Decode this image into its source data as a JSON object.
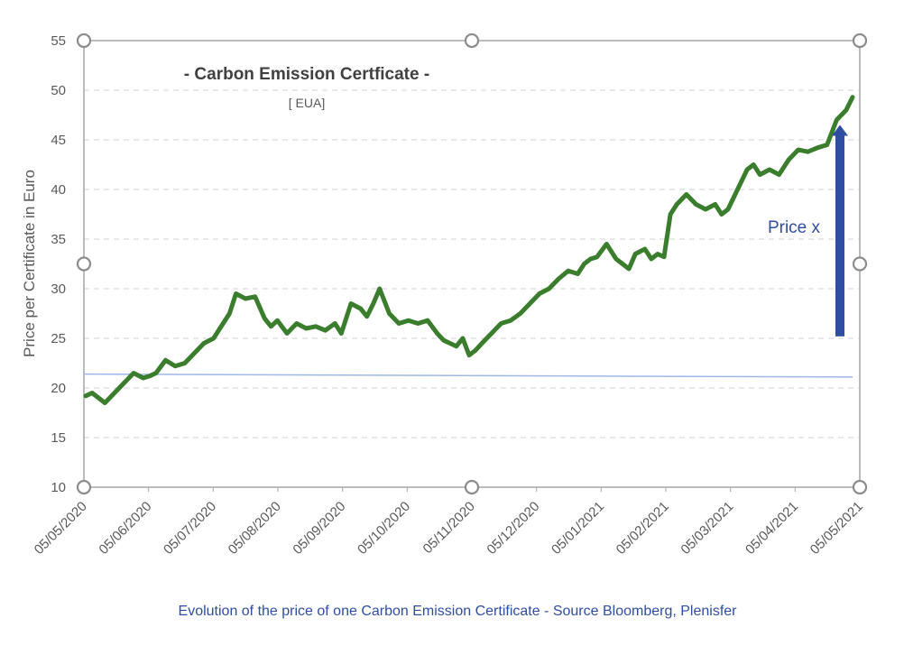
{
  "chart_data": {
    "type": "line",
    "title": "- Carbon Emission Certficate -",
    "subtitle": "[ EUA]",
    "ylabel": "Price per Certificate in Euro",
    "xlabel": "",
    "ylim": [
      10,
      55
    ],
    "yticks": [
      10,
      15,
      20,
      25,
      30,
      35,
      40,
      45,
      50,
      55
    ],
    "xticks": [
      "05/05/2020",
      "05/06/2020",
      "05/07/2020",
      "05/08/2020",
      "05/09/2020",
      "05/10/2020",
      "05/11/2020",
      "05/12/2020",
      "05/01/2021",
      "05/02/2021",
      "05/03/2021",
      "05/04/2021",
      "05/05/2021"
    ],
    "grid": true,
    "legend": "none",
    "series": [
      {
        "color": "#3a7d2c",
        "x": [
          0,
          0.1,
          0.2,
          0.3,
          0.45,
          0.6,
          0.75,
          0.9,
          1.0,
          1.1,
          1.25,
          1.4,
          1.55,
          1.7,
          1.85,
          2.0,
          2.15,
          2.25,
          2.35,
          2.5,
          2.65,
          2.8,
          2.9,
          3.0,
          3.15,
          3.3,
          3.45,
          3.6,
          3.75,
          3.9,
          4.0,
          4.15,
          4.3,
          4.4,
          4.5,
          4.6,
          4.75,
          4.9,
          5.05,
          5.2,
          5.35,
          5.5,
          5.6,
          5.7,
          5.8,
          5.9,
          6.0,
          6.1,
          6.2,
          6.35,
          6.5,
          6.65,
          6.8,
          6.95,
          7.1,
          7.25,
          7.4,
          7.55,
          7.7,
          7.8,
          7.9,
          8.0,
          8.15,
          8.3,
          8.4,
          8.5,
          8.6,
          8.75,
          8.85,
          8.95,
          9.05,
          9.15,
          9.25,
          9.4,
          9.55,
          9.7,
          9.85,
          9.95,
          10.05,
          10.2,
          10.35,
          10.45,
          10.55,
          10.7,
          10.85,
          11.0,
          11.15,
          11.3,
          11.45,
          11.6,
          11.75,
          11.9,
          12.0
        ],
        "y": [
          19.2,
          19.5,
          19.0,
          18.5,
          19.5,
          20.5,
          21.5,
          21.0,
          21.2,
          21.5,
          22.8,
          22.2,
          22.5,
          23.5,
          24.5,
          25.0,
          26.5,
          27.5,
          29.5,
          29.0,
          29.2,
          27.0,
          26.2,
          26.8,
          25.5,
          26.5,
          26.0,
          26.2,
          25.8,
          26.5,
          25.5,
          28.5,
          28.0,
          27.2,
          28.5,
          30.0,
          27.5,
          26.5,
          26.8,
          26.5,
          26.8,
          25.5,
          24.8,
          24.5,
          24.2,
          25.0,
          23.3,
          23.8,
          24.5,
          25.5,
          26.5,
          26.8,
          27.5,
          28.5,
          29.5,
          30.0,
          31.0,
          31.8,
          31.5,
          32.5,
          33.0,
          33.2,
          34.5,
          33.0,
          32.5,
          32.0,
          33.5,
          34.0,
          33.0,
          33.5,
          33.2,
          37.5,
          38.5,
          39.5,
          38.5,
          38.0,
          38.5,
          37.5,
          38.0,
          40.0,
          42.0,
          42.5,
          41.5,
          42.0,
          41.5,
          43.0,
          44.0,
          43.8,
          44.2,
          44.5,
          47.0,
          48.0,
          49.3
        ]
      }
    ],
    "reference_line": {
      "color": "#9fb8e6",
      "y_start": 21.4,
      "y_end": 21.1
    },
    "annotation": {
      "text": "Price x",
      "color": "#2f4ea2",
      "arrow_y_from": 25.2,
      "arrow_y_to": 46.5
    }
  },
  "caption": "Evolution of the price of one Carbon Emission Certificate - Source Bloomberg, Plenisfer"
}
